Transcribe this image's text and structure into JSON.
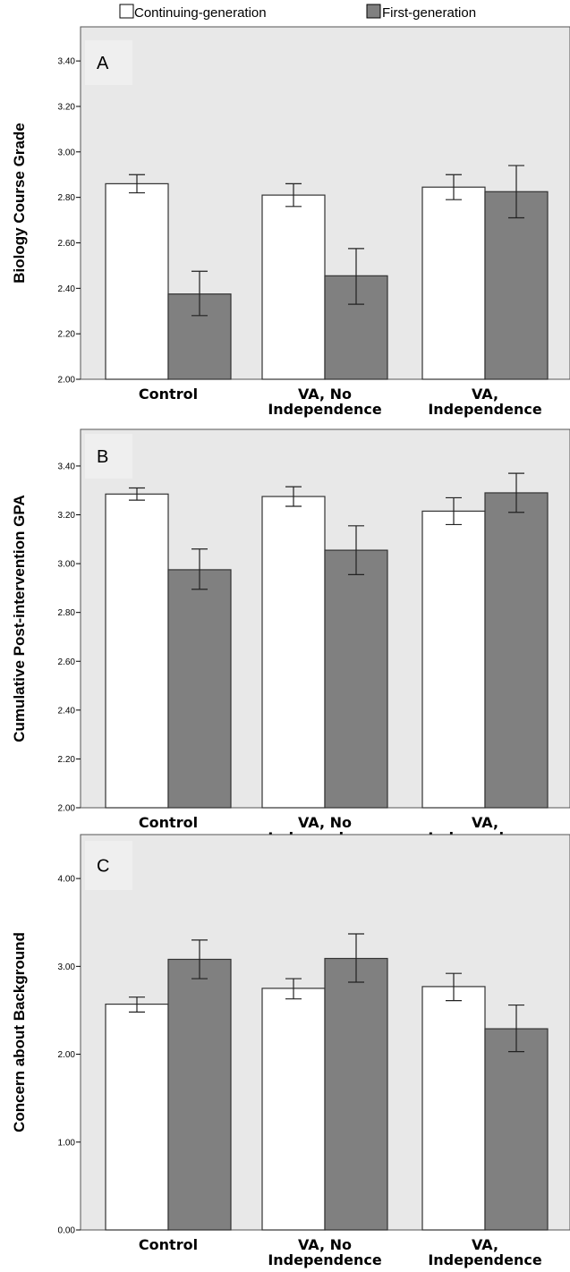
{
  "legend": {
    "items": [
      {
        "label": "Continuing-generation",
        "color": "#ffffff"
      },
      {
        "label": "First-generation",
        "color": "#808080"
      }
    ]
  },
  "colors": {
    "panel_background": "#e8e8e8",
    "continuing": "#ffffff",
    "first": "#808080",
    "bar_stroke": "#333333"
  },
  "chart_data": [
    {
      "type": "bar",
      "panel_label": "A",
      "ylabel": "Biology Course Grade",
      "categories": [
        [
          "Control"
        ],
        [
          "VA, No",
          "Independence"
        ],
        [
          "VA,",
          "Independence"
        ]
      ],
      "ylim": [
        2.0,
        3.55
      ],
      "yticks": [
        2.0,
        2.2,
        2.4,
        2.6,
        2.8,
        3.0,
        3.2,
        3.4
      ],
      "ytick_labels": [
        "2.00",
        "2.20",
        "2.40",
        "2.60",
        "2.80",
        "3.00",
        "3.20",
        "3.40"
      ],
      "series": [
        {
          "name": "Continuing-generation",
          "values": [
            2.86,
            2.81,
            2.845
          ],
          "err_low": [
            2.82,
            2.76,
            2.79
          ],
          "err_high": [
            2.9,
            2.86,
            2.9
          ]
        },
        {
          "name": "First-generation",
          "values": [
            2.375,
            2.455,
            2.825
          ],
          "err_low": [
            2.28,
            2.33,
            2.71
          ],
          "err_high": [
            2.475,
            2.575,
            2.94
          ]
        }
      ]
    },
    {
      "type": "bar",
      "panel_label": "B",
      "ylabel": "Cumulative  Post-intervention  GPA",
      "categories": [
        [
          "Control"
        ],
        [
          "VA, No",
          "Independence"
        ],
        [
          "VA,",
          "Independence"
        ]
      ],
      "ylim": [
        2.0,
        3.55
      ],
      "yticks": [
        2.0,
        2.2,
        2.4,
        2.6,
        2.8,
        3.0,
        3.2,
        3.4
      ],
      "ytick_labels": [
        "2.00",
        "2.20",
        "2.40",
        "2.60",
        "2.80",
        "3.00",
        "3.20",
        "3.40"
      ],
      "series": [
        {
          "name": "Continuing-generation",
          "values": [
            3.285,
            3.275,
            3.215
          ],
          "err_low": [
            3.26,
            3.235,
            3.16
          ],
          "err_high": [
            3.31,
            3.315,
            3.27
          ]
        },
        {
          "name": "First-generation",
          "values": [
            2.975,
            3.055,
            3.29
          ],
          "err_low": [
            2.895,
            2.955,
            3.21
          ],
          "err_high": [
            3.06,
            3.155,
            3.37
          ]
        }
      ]
    },
    {
      "type": "bar",
      "panel_label": "C",
      "ylabel": "Concern about Background",
      "categories": [
        [
          "Control"
        ],
        [
          "VA, No",
          "Independence"
        ],
        [
          "VA,",
          "Independence"
        ]
      ],
      "ylim": [
        0.0,
        4.5
      ],
      "yticks": [
        0.0,
        1.0,
        2.0,
        3.0,
        4.0
      ],
      "ytick_labels": [
        "0.00",
        "1.00",
        "2.00",
        "3.00",
        "4.00"
      ],
      "series": [
        {
          "name": "Continuing-generation",
          "values": [
            2.57,
            2.75,
            2.77
          ],
          "err_low": [
            2.48,
            2.63,
            2.61
          ],
          "err_high": [
            2.65,
            2.86,
            2.92
          ]
        },
        {
          "name": "First-generation",
          "values": [
            3.08,
            3.09,
            2.29
          ],
          "err_low": [
            2.86,
            2.82,
            2.03
          ],
          "err_high": [
            3.3,
            3.37,
            2.56
          ]
        }
      ]
    }
  ]
}
